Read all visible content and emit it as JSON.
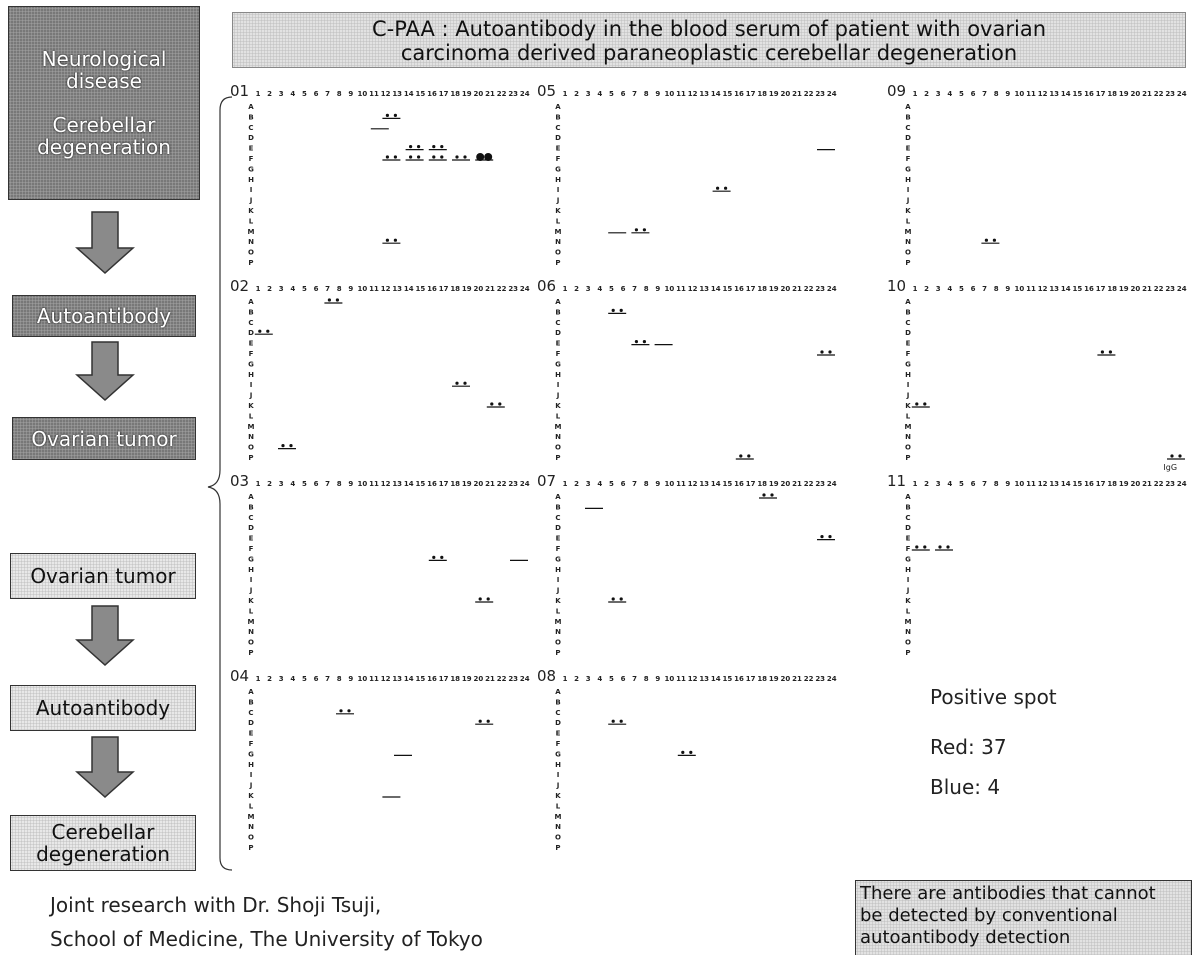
{
  "title": [
    "C-PAA : Autoantibody in the blood serum of patient with ovarian",
    "carcinoma derived paraneoplastic cerebellar degeneration"
  ],
  "flow_top": {
    "box1": [
      "Neurological disease",
      "Cerebellar degeneration"
    ],
    "box2": "Autoantibody",
    "box3": "Ovarian tumor"
  },
  "flow_bottom": [
    "Ovarian tumor",
    "Autoantibody",
    "Cerebellar degeneration"
  ],
  "panels": {
    "labels": [
      "01",
      "02",
      "03",
      "04",
      "05",
      "06",
      "07",
      "08",
      "09",
      "10",
      "11"
    ],
    "columns": [
      "1",
      "2",
      "3",
      "4",
      "5",
      "6",
      "7",
      "8",
      "9",
      "10",
      "11",
      "12",
      "13",
      "14",
      "15",
      "16",
      "17",
      "18",
      "19",
      "20",
      "21",
      "22",
      "23",
      "24"
    ],
    "rows": [
      "A",
      "B",
      "C",
      "D",
      "E",
      "F",
      "G",
      "H",
      "I",
      "J",
      "K",
      "L",
      "M",
      "N",
      "O",
      "P"
    ],
    "igg": "IgG"
  },
  "summary": {
    "heading": "Positive spot",
    "red": "Red: 37",
    "blue": "Blue: 4"
  },
  "note": [
    "There are antibodies that cannot",
    "be detected by conventional",
    "autoantibody detection"
  ],
  "footer": [
    "Joint research with Dr. Shoji Tsuji,",
    "School of Medicine, The University of Tokyo"
  ]
}
